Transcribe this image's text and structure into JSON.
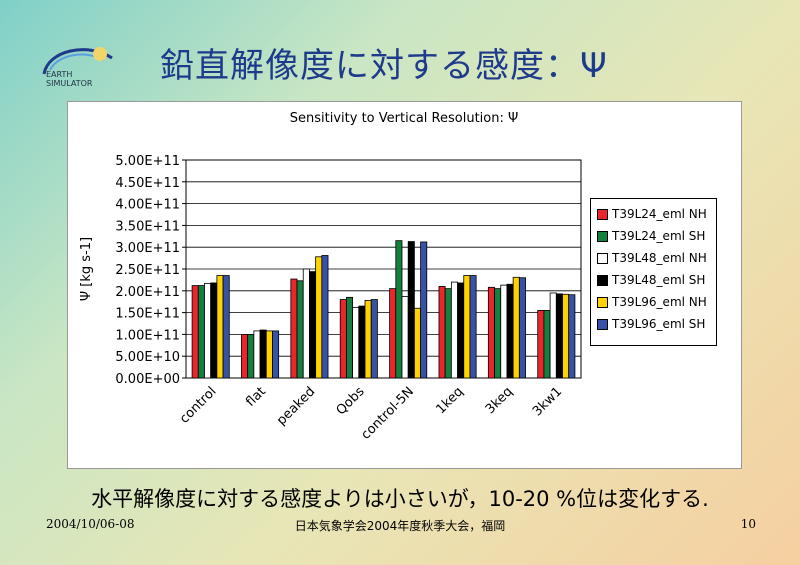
{
  "slide": {
    "logo_line1": "EARTH",
    "logo_line2": "SIMULATOR",
    "title": "鉛直解像度に対する感度：Ψ",
    "caption": "水平解像度に対する感度よりは小さいが，10-20 %位は変化する.",
    "footer_date": "2004/10/06-08",
    "footer_event": "日本気象学会2004年度秋季大会，福岡",
    "page_number": "10"
  },
  "chart_data": {
    "type": "bar",
    "title": "Sensitivity to Vertical Resolution: Ψ",
    "xlabel": "",
    "ylabel": "Ψ [kg s-1]",
    "ylim": [
      0,
      500000000000.0
    ],
    "yticks": [
      "0.00E+00",
      "5.00E+10",
      "1.00E+11",
      "1.50E+11",
      "2.00E+11",
      "2.50E+11",
      "3.00E+11",
      "3.50E+11",
      "4.00E+11",
      "4.50E+11",
      "5.00E+11"
    ],
    "grid": true,
    "legend_position": "right",
    "categories": [
      "control",
      "flat",
      "peaked",
      "Qobs",
      "control-5N",
      "1keq",
      "3keq",
      "3kw1"
    ],
    "series": [
      {
        "name": "T39L24_eml NH",
        "color": "#e8262b",
        "values": [
          212000000000.0,
          100000000000.0,
          227000000000.0,
          180000000000.0,
          205000000000.0,
          210000000000.0,
          208000000000.0,
          155000000000.0
        ]
      },
      {
        "name": "T39L24_eml SH",
        "color": "#13803e",
        "values": [
          212000000000.0,
          100000000000.0,
          223000000000.0,
          185000000000.0,
          315000000000.0,
          205000000000.0,
          205000000000.0,
          155000000000.0
        ]
      },
      {
        "name": "T39L48_eml NH",
        "color": "#ffffff",
        "values": [
          217000000000.0,
          108000000000.0,
          250000000000.0,
          162000000000.0,
          187000000000.0,
          220000000000.0,
          213000000000.0,
          195000000000.0
        ]
      },
      {
        "name": "T39L48_eml SH",
        "color": "#000000",
        "values": [
          218000000000.0,
          110000000000.0,
          244000000000.0,
          165000000000.0,
          313000000000.0,
          218000000000.0,
          215000000000.0,
          193000000000.0
        ]
      },
      {
        "name": "T39L96_eml NH",
        "color": "#ffd200",
        "values": [
          235000000000.0,
          108000000000.0,
          278000000000.0,
          178000000000.0,
          160000000000.0,
          235000000000.0,
          231000000000.0,
          192000000000.0
        ]
      },
      {
        "name": "T39L96_eml SH",
        "color": "#3653a8",
        "values": [
          235000000000.0,
          108000000000.0,
          281000000000.0,
          180000000000.0,
          312000000000.0,
          235000000000.0,
          230000000000.0,
          191000000000.0
        ]
      }
    ]
  }
}
